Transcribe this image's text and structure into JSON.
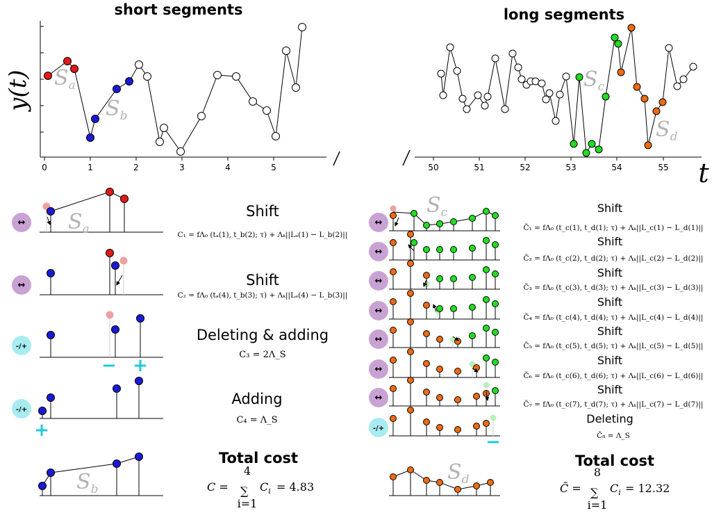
{
  "titles": {
    "short": "short segments",
    "long": "long segments"
  },
  "axes": {
    "ylabel": "y(t)",
    "xlabel": "t",
    "left_ticks": [
      "0",
      "1",
      "2",
      "3",
      "4",
      "5"
    ],
    "right_ticks": [
      "50",
      "51",
      "52",
      "53",
      "54",
      "55"
    ]
  },
  "segment_labels": {
    "a": "S",
    "a_sub": "a",
    "b": "S",
    "b_sub": "b",
    "c": "S",
    "c_sub": "c",
    "d": "S",
    "d_sub": "d"
  },
  "colors": {
    "a": "#e21a1a",
    "b": "#1a1ad6",
    "c": "#22dd22",
    "d": "#ee6a14",
    "open": "#ffffff",
    "shift_badge": "#c9a2d4",
    "addel_badge": "#a8ecf0",
    "ghost_red": "#f0a0a0",
    "ghost_green": "#b8f0b8",
    "plusminus": "#22c8dc"
  },
  "badges": {
    "shift": "↔",
    "addel": "-/+"
  },
  "left_ops": [
    {
      "name": "Shift",
      "formula": "C₁ = fΛ₀ (tₐ(1), t_b(2); τ) + Λₖ||Lₐ(1) − L_b(2)||"
    },
    {
      "name": "Shift",
      "formula": "C₂ = fΛ₀ (tₐ(4), t_b(3); τ) + Λₖ||Lₐ(4) − L_b(3)||"
    },
    {
      "name": "Deleting & adding",
      "formula": "C₃ = 2Λ_S"
    },
    {
      "name": "Adding",
      "formula": "C₄ = Λ_S"
    }
  ],
  "right_ops": [
    {
      "name": "Shift",
      "formula": "C̃₁ = fΛ₀ (t_c(1), t_d(1); τ) + Λₖ||L_c(1) − L_d(1)||"
    },
    {
      "name": "Shift",
      "formula": "C̃₂ = fΛ₀ (t_c(2), t_d(2); τ) + Λₖ||L_c(2) − L_d(2)||"
    },
    {
      "name": "Shift",
      "formula": "C̃₃ = fΛ₀ (t_c(3), t_d(3); τ) + Λₖ||L_c(3) − L_d(3)||"
    },
    {
      "name": "Shift",
      "formula": "C̃₄ = fΛ₀ (t_c(4), t_d(4); τ) + Λₖ||L_c(4) − L_d(4)||"
    },
    {
      "name": "Shift",
      "formula": "C̃₅ = fΛ₀ (t_c(5), t_d(5); τ) + Λₖ||L_c(5) − L_d(5)||"
    },
    {
      "name": "Shift",
      "formula": "C̃₆ = fΛ₀ (t_c(6), t_d(6); τ) + Λₖ||L_c(6) − L_d(6)||"
    },
    {
      "name": "Shift",
      "formula": "C̃₇ = fΛ₀ (t_c(7), t_d(7); τ) + Λₖ||L_c(7) − L_d(7)||"
    },
    {
      "name": "Deleting",
      "formula": "C̃₈ = Λ_S"
    }
  ],
  "totals": {
    "left_title": "Total cost",
    "left_formula": "C = Σᵢ₌₁⁴ Cᵢ = 4.83",
    "right_title": "Total cost",
    "right_formula": "C̃ = Σᵢ₌₁⁸ Cᵢ = 12.32"
  },
  "symbols": {
    "plus": "+",
    "minus": "−",
    "tilde_c": "C̃",
    "sum": "∑",
    "i1": "i=1",
    "n4": "4",
    "n8": "8",
    "ci": "C",
    "ci_sub": "i",
    "eq_left": "= 4.83",
    "eq_right": "= 12.32",
    "c_left": "C =",
    "c_right": "C̃ ="
  }
}
